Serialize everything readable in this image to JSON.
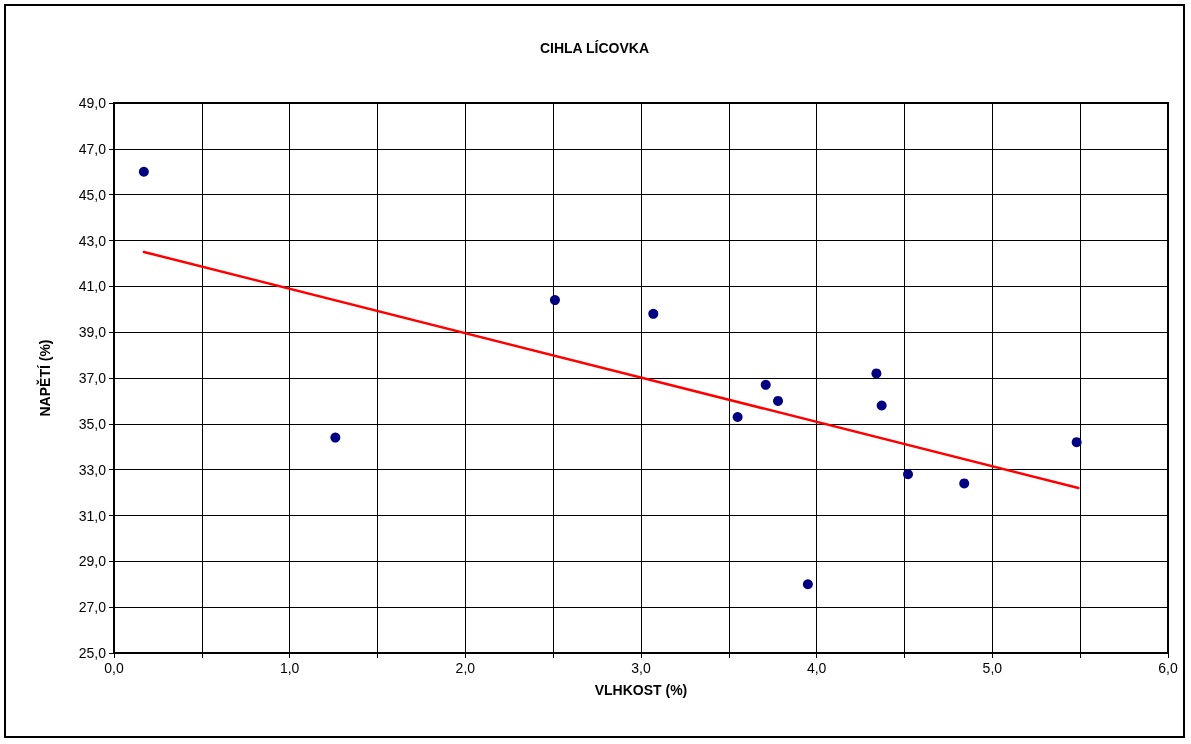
{
  "chart_data": {
    "type": "scatter",
    "title": "CIHLA LÍCOVKA",
    "xlabel": "VLHKOST (%)",
    "ylabel": "NAPĚTÍ (%)",
    "xlim": [
      0,
      6
    ],
    "ylim": [
      25,
      49
    ],
    "xticks": [
      {
        "value": 0,
        "label": "0,0"
      },
      {
        "value": 0.5,
        "label": null
      },
      {
        "value": 1,
        "label": "1,0"
      },
      {
        "value": 1.5,
        "label": null
      },
      {
        "value": 2,
        "label": "2,0"
      },
      {
        "value": 2.5,
        "label": null
      },
      {
        "value": 3,
        "label": "3,0"
      },
      {
        "value": 3.5,
        "label": null
      },
      {
        "value": 4,
        "label": "4,0"
      },
      {
        "value": 4.5,
        "label": null
      },
      {
        "value": 5,
        "label": "5,0"
      },
      {
        "value": 5.5,
        "label": null
      },
      {
        "value": 6,
        "label": "6,0"
      }
    ],
    "yticks": [
      {
        "value": 25,
        "label": "25,0"
      },
      {
        "value": 27,
        "label": "27,0"
      },
      {
        "value": 29,
        "label": "29,0"
      },
      {
        "value": 31,
        "label": "31,0"
      },
      {
        "value": 33,
        "label": "33,0"
      },
      {
        "value": 35,
        "label": "35,0"
      },
      {
        "value": 37,
        "label": "37,0"
      },
      {
        "value": 39,
        "label": "39,0"
      },
      {
        "value": 41,
        "label": "41,0"
      },
      {
        "value": 43,
        "label": "43,0"
      },
      {
        "value": 45,
        "label": "45,0"
      },
      {
        "value": 47,
        "label": "47,0"
      },
      {
        "value": 49,
        "label": "49,0"
      }
    ],
    "grid": true,
    "series": [
      {
        "marker": "circle",
        "color": "#000080",
        "x": [
          0.17,
          1.26,
          2.51,
          3.07,
          3.55,
          3.71,
          3.78,
          3.95,
          4.34,
          4.37,
          4.52,
          4.84,
          5.48
        ],
        "values": [
          46.0,
          34.4,
          40.4,
          39.8,
          35.3,
          36.7,
          36.0,
          28.0,
          37.2,
          35.8,
          32.8,
          32.4,
          34.2
        ]
      },
      {
        "type": "line",
        "marker": "none",
        "color": "#ff0000",
        "x": [
          0.17,
          5.49
        ],
        "values": [
          42.5,
          32.2
        ]
      }
    ]
  }
}
